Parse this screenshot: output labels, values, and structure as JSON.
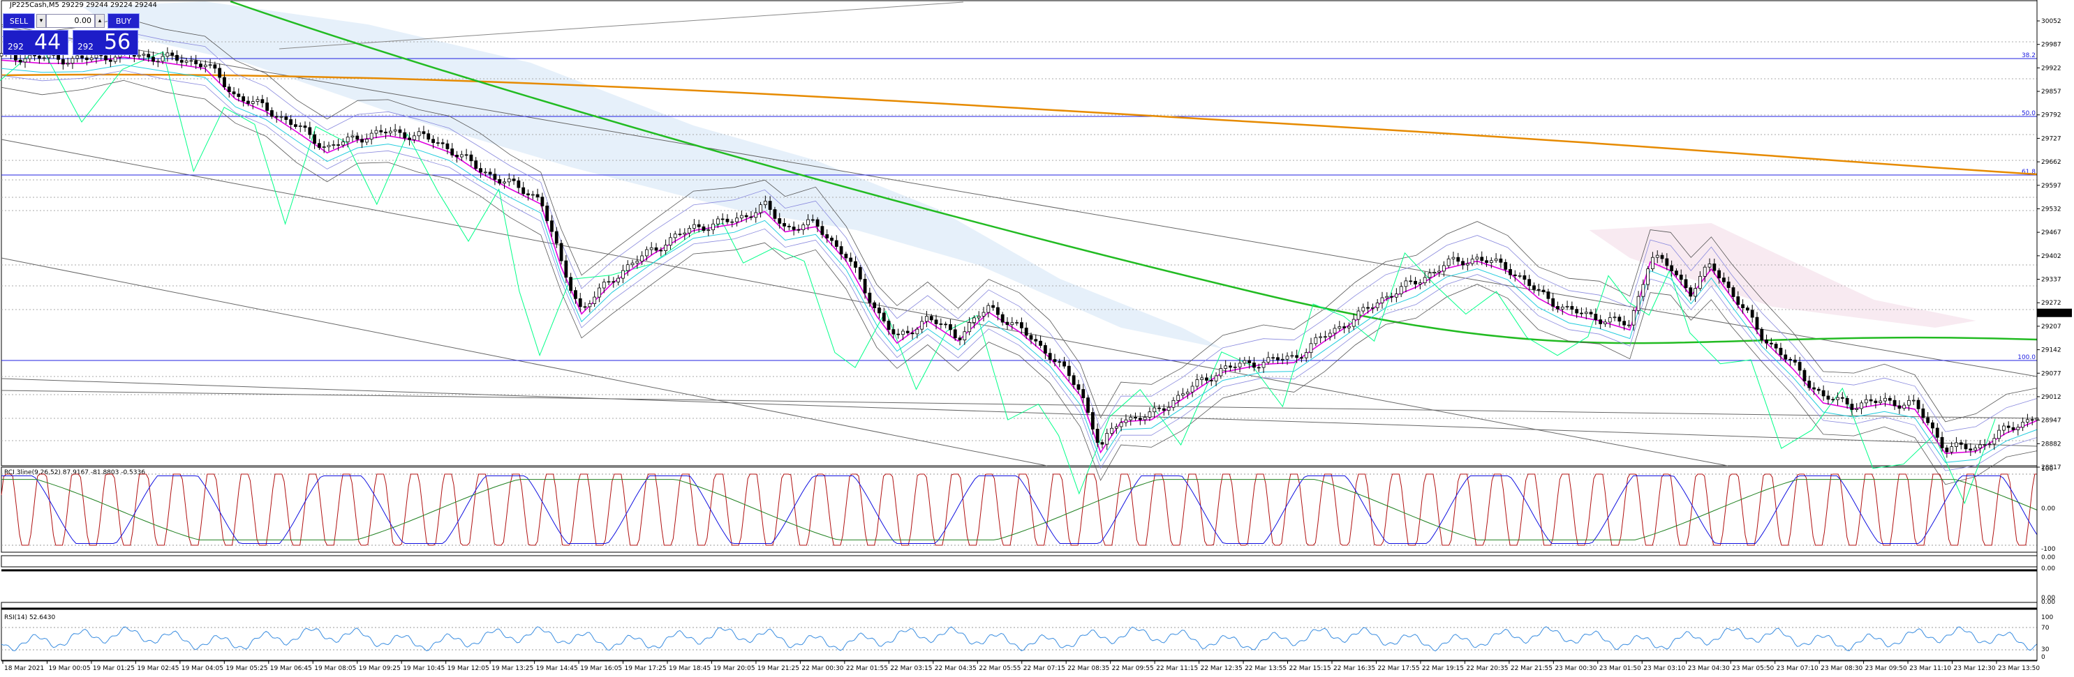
{
  "header": {
    "title": "JP225Cash,M5  29229 29244 29224 29244"
  },
  "trade_panel": {
    "sell_label": "SELL",
    "buy_label": "BUY",
    "lot_value": "0.00",
    "lot_dec_icon": "▾",
    "lot_inc_icon": "▴",
    "sell_price_small": "292",
    "sell_price_big": "44",
    "buy_price_small": "292",
    "buy_price_big": "56"
  },
  "colors": {
    "fib_line": "#2020e0",
    "ema_long": "#e68a00",
    "ema_mid": "#22bb22",
    "ma_fast": "#e000e0",
    "span": "#00ff88",
    "cloud": "#dbe9f8",
    "rci_red": "#b01010",
    "rci_blue": "#1010e0",
    "rci_green": "#208020",
    "rsi": "#3a8de0"
  },
  "indicators": {
    "rci_label": "RCI 3line(9,26,52) 87.9167 -81.8803 -0.5336",
    "rsi_label": "RSI(14) 52.6430"
  },
  "chart_data": {
    "type": "candlestick",
    "symbol": "JP225Cash",
    "timeframe": "M5",
    "price_axis_labels": [
      "30052",
      "29987",
      "29922",
      "29857",
      "29792",
      "29727",
      "29662",
      "29597",
      "29532",
      "29467",
      "29402",
      "29337",
      "29272",
      "29207",
      "29142",
      "29077",
      "29012",
      "28947",
      "28882",
      "28817"
    ],
    "fib_levels": [
      {
        "label": "38.2"
      },
      {
        "label": "50.0"
      },
      {
        "label": "61.8"
      },
      {
        "label": "100.0"
      }
    ],
    "time_axis_labels": [
      "18 Mar 2021",
      "19 Mar 00:05",
      "19 Mar 01:25",
      "19 Mar 02:45",
      "19 Mar 04:05",
      "19 Mar 05:25",
      "19 Mar 06:45",
      "19 Mar 08:05",
      "19 Mar 09:25",
      "19 Mar 10:45",
      "19 Mar 12:05",
      "19 Mar 13:25",
      "19 Mar 14:45",
      "19 Mar 16:05",
      "19 Mar 17:25",
      "19 Mar 18:45",
      "19 Mar 20:05",
      "19 Mar 21:25",
      "22 Mar 00:30",
      "22 Mar 01:55",
      "22 Mar 03:15",
      "22 Mar 04:35",
      "22 Mar 05:55",
      "22 Mar 07:15",
      "22 Mar 08:35",
      "22 Mar 09:55",
      "22 Mar 11:15",
      "22 Mar 12:35",
      "22 Mar 13:55",
      "22 Mar 15:15",
      "22 Mar 16:35",
      "22 Mar 17:55",
      "22 Mar 19:15",
      "22 Mar 20:35",
      "22 Mar 21:55",
      "23 Mar 00:30",
      "23 Mar 01:50",
      "23 Mar 03:10",
      "23 Mar 04:30",
      "23 Mar 05:50",
      "23 Mar 07:10",
      "23 Mar 08:30",
      "23 Mar 09:50",
      "23 Mar 11:10",
      "23 Mar 12:30",
      "23 Mar 13:50"
    ],
    "close_path": [
      [
        0,
        29955
      ],
      [
        0.02,
        29950
      ],
      [
        0.04,
        29945
      ],
      [
        0.06,
        29960
      ],
      [
        0.08,
        29950
      ],
      [
        0.1,
        29935
      ],
      [
        0.115,
        29845
      ],
      [
        0.13,
        29810
      ],
      [
        0.145,
        29760
      ],
      [
        0.16,
        29700
      ],
      [
        0.175,
        29730
      ],
      [
        0.19,
        29745
      ],
      [
        0.205,
        29735
      ],
      [
        0.22,
        29700
      ],
      [
        0.235,
        29640
      ],
      [
        0.25,
        29600
      ],
      [
        0.265,
        29560
      ],
      [
        0.275,
        29380
      ],
      [
        0.285,
        29250
      ],
      [
        0.3,
        29340
      ],
      [
        0.32,
        29420
      ],
      [
        0.34,
        29480
      ],
      [
        0.36,
        29500
      ],
      [
        0.375,
        29540
      ],
      [
        0.385,
        29480
      ],
      [
        0.4,
        29490
      ],
      [
        0.415,
        29400
      ],
      [
        0.43,
        29250
      ],
      [
        0.44,
        29170
      ],
      [
        0.455,
        29230
      ],
      [
        0.47,
        29180
      ],
      [
        0.485,
        29260
      ],
      [
        0.5,
        29200
      ],
      [
        0.515,
        29130
      ],
      [
        0.53,
        29030
      ],
      [
        0.54,
        28870
      ],
      [
        0.55,
        28950
      ],
      [
        0.565,
        28960
      ],
      [
        0.58,
        29020
      ],
      [
        0.6,
        29090
      ],
      [
        0.62,
        29110
      ],
      [
        0.635,
        29120
      ],
      [
        0.65,
        29180
      ],
      [
        0.665,
        29230
      ],
      [
        0.68,
        29290
      ],
      [
        0.695,
        29330
      ],
      [
        0.71,
        29380
      ],
      [
        0.725,
        29395
      ],
      [
        0.74,
        29370
      ],
      [
        0.755,
        29300
      ],
      [
        0.77,
        29250
      ],
      [
        0.785,
        29230
      ],
      [
        0.8,
        29210
      ],
      [
        0.81,
        29400
      ],
      [
        0.82,
        29370
      ],
      [
        0.83,
        29300
      ],
      [
        0.84,
        29380
      ],
      [
        0.85,
        29300
      ],
      [
        0.865,
        29180
      ],
      [
        0.88,
        29100
      ],
      [
        0.895,
        29010
      ],
      [
        0.91,
        28990
      ],
      [
        0.925,
        29000
      ],
      [
        0.94,
        28990
      ],
      [
        0.955,
        28870
      ],
      [
        0.97,
        28870
      ],
      [
        0.985,
        28920
      ],
      [
        1.0,
        28960
      ]
    ]
  }
}
